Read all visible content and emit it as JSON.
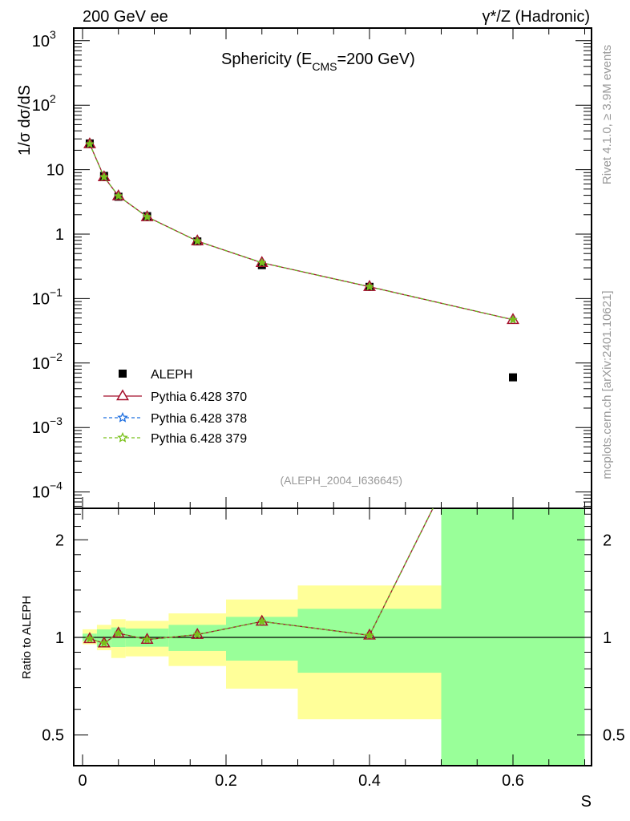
{
  "chart_data": [
    {
      "type": "line",
      "panel": "main",
      "title": "Sphericity (E_CMS=200 GeV)",
      "title_main": "Sphericity (E",
      "title_sub": "CMS",
      "title_end": "=200 GeV)",
      "top_left_label": "200 GeV ee",
      "top_right_label": "γ*/Z (Hadronic)",
      "ylabel": "1/σ  dσ/dS",
      "yscale": "log",
      "ylim": [
        5.57e-05,
        1570
      ],
      "xlim": [
        -0.012,
        0.712
      ],
      "ytick_labels": [
        {
          "value": 1000,
          "base": "10",
          "exp": "3"
        },
        {
          "value": 100,
          "base": "10",
          "exp": "2"
        },
        {
          "value": 10,
          "base": "10",
          "exp": ""
        },
        {
          "value": 1,
          "base": "1",
          "exp": ""
        },
        {
          "value": 0.1,
          "base": "10",
          "exp": "−1"
        },
        {
          "value": 0.01,
          "base": "10",
          "exp": "−2"
        },
        {
          "value": 0.001,
          "base": "10",
          "exp": "−3"
        },
        {
          "value": 0.0001,
          "base": "10",
          "exp": "−4"
        }
      ],
      "x": [
        0.01,
        0.03,
        0.05,
        0.09,
        0.16,
        0.25,
        0.4,
        0.6
      ],
      "bin_edges": [
        0,
        0.02,
        0.04,
        0.06,
        0.12,
        0.2,
        0.3,
        0.5,
        0.7
      ],
      "series": [
        {
          "name": "ALEPH",
          "marker": "square",
          "color": "#000000",
          "values": [
            25.5,
            8.0,
            3.8,
            1.9,
            0.77,
            0.33,
            0.152,
            0.006
          ]
        },
        {
          "name": "Pythia 6.428 370",
          "marker": "triangle",
          "line": "solid",
          "color": "#a50f2a",
          "values": [
            25.0,
            7.7,
            3.9,
            1.85,
            0.78,
            0.36,
            0.153,
            0.047
          ]
        },
        {
          "name": "Pythia 6.428 378",
          "marker": "star",
          "line": "dashed",
          "color": "#1f6fe0",
          "values": [
            25.0,
            7.7,
            3.9,
            1.85,
            0.78,
            0.36,
            0.153,
            0.047
          ]
        },
        {
          "name": "Pythia 6.428 379",
          "marker": "star",
          "line": "dashed",
          "color": "#7ac01a",
          "values": [
            25.0,
            7.7,
            3.9,
            1.85,
            0.78,
            0.36,
            0.153,
            0.047
          ]
        }
      ],
      "legend_placement": "lower-left",
      "analysis_label": "(ALEPH_2004_I636645)",
      "side_label_1": "Rivet 4.1.0, ≥ 3.9M events",
      "side_label_2": "mcplots.cern.ch [arXiv:2401.10621]"
    },
    {
      "type": "line",
      "panel": "ratio",
      "ylabel": "Ratio to ALEPH",
      "xlabel": "S",
      "yscale": "log",
      "ylim": [
        0.402,
        2.5
      ],
      "xlim": [
        -0.012,
        0.712
      ],
      "ytick_labels": [
        "0.5",
        "1",
        "2"
      ],
      "ytick_values": [
        0.5,
        1,
        2
      ],
      "xtick_labels": [
        "0",
        "0.2",
        "0.4",
        "0.6"
      ],
      "xtick_values": [
        0,
        0.2,
        0.4,
        0.6
      ],
      "band_stat_lo": [
        0.974,
        0.934,
        0.934,
        0.936,
        0.908,
        0.848,
        0.778,
        0.1
      ],
      "band_stat_hi": [
        1.027,
        1.059,
        1.073,
        1.065,
        1.093,
        1.157,
        1.225,
        10
      ],
      "band_tot_lo": [
        0.952,
        0.913,
        0.864,
        0.874,
        0.816,
        0.695,
        0.559,
        0.1
      ],
      "band_tot_hi": [
        1.059,
        1.093,
        1.138,
        1.125,
        1.186,
        1.309,
        1.446,
        10
      ],
      "band_colors": {
        "stat": "#99ff99",
        "total": "#ffff99"
      },
      "x": [
        0.01,
        0.03,
        0.05,
        0.09,
        0.16,
        0.25,
        0.4,
        0.6
      ],
      "values": [
        0.99,
        0.96,
        1.03,
        0.985,
        1.02,
        1.12,
        1.015,
        7.8
      ]
    }
  ]
}
